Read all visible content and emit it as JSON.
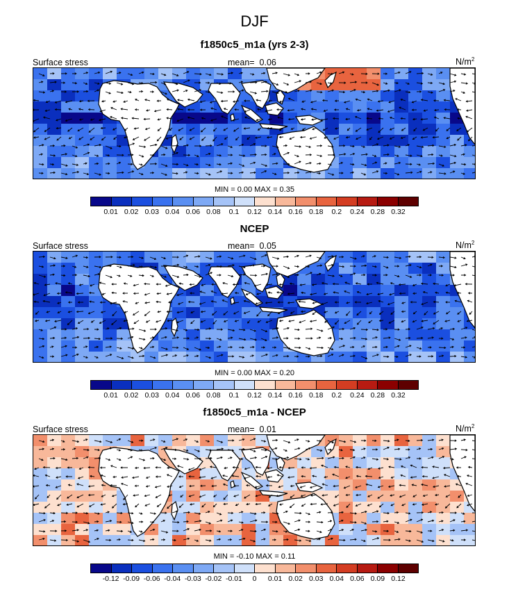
{
  "figure": {
    "title": "DJF"
  },
  "panels": [
    {
      "title": "f1850c5_m1a (yrs 2-3)",
      "left_label": "Surface stress",
      "mean_label": "mean=",
      "mean_value": "0.06",
      "units": "N/m",
      "units_sup": "2",
      "minmax": "MIN =  0.00 MAX =  0.35",
      "colorbar": {
        "ticks": [
          "0.01",
          "0.02",
          "0.03",
          "0.04",
          "0.06",
          "0.08",
          "0.1",
          "0.12",
          "0.14",
          "0.16",
          "0.18",
          "0.2",
          "0.24",
          "0.28",
          "0.32"
        ],
        "colors": [
          "#08088a",
          "#0a2fbe",
          "#1b4fe0",
          "#3a72ef",
          "#5a8ff2",
          "#7ea9f5",
          "#a5c3f7",
          "#cfe0fa",
          "#fde0cf",
          "#f8b89a",
          "#f28f6c",
          "#e8643f",
          "#d43d22",
          "#b71b12",
          "#8b0000",
          "#5e0000"
        ]
      },
      "tone": "magnitude"
    },
    {
      "title": "NCEP",
      "left_label": "Surface stress",
      "mean_label": "mean=",
      "mean_value": "0.05",
      "units": "N/m",
      "units_sup": "2",
      "minmax": "MIN =  0.00 MAX =  0.20",
      "colorbar": {
        "ticks": [
          "0.01",
          "0.02",
          "0.03",
          "0.04",
          "0.06",
          "0.08",
          "0.1",
          "0.12",
          "0.14",
          "0.16",
          "0.18",
          "0.2",
          "0.24",
          "0.28",
          "0.32"
        ],
        "colors": [
          "#08088a",
          "#0a2fbe",
          "#1b4fe0",
          "#3a72ef",
          "#5a8ff2",
          "#7ea9f5",
          "#a5c3f7",
          "#cfe0fa",
          "#fde0cf",
          "#f8b89a",
          "#f28f6c",
          "#e8643f",
          "#d43d22",
          "#b71b12",
          "#8b0000",
          "#5e0000"
        ]
      },
      "tone": "magnitude"
    },
    {
      "title": "f1850c5_m1a - NCEP",
      "left_label": "Surface stress",
      "mean_label": "mean=",
      "mean_value": "0.01",
      "units": "N/m",
      "units_sup": "2",
      "minmax": "MIN = -0.10 MAX =  0.11",
      "colorbar": {
        "ticks": [
          "-0.12",
          "-0.09",
          "-0.06",
          "-0.04",
          "-0.03",
          "-0.02",
          "-0.01",
          "0",
          "0.01",
          "0.02",
          "0.03",
          "0.04",
          "0.06",
          "0.09",
          "0.12"
        ],
        "colors": [
          "#08088a",
          "#0a2fbe",
          "#1b4fe0",
          "#3a72ef",
          "#5a8ff2",
          "#7ea9f5",
          "#a5c3f7",
          "#cfe0fa",
          "#fde0cf",
          "#f8b89a",
          "#f28f6c",
          "#e8643f",
          "#d43d22",
          "#b71b12",
          "#8b0000",
          "#5e0000"
        ]
      },
      "tone": "difference"
    }
  ],
  "style": {
    "land_color": "#ffffff",
    "coast_color": "#000000",
    "arrow_color": "#000000"
  }
}
